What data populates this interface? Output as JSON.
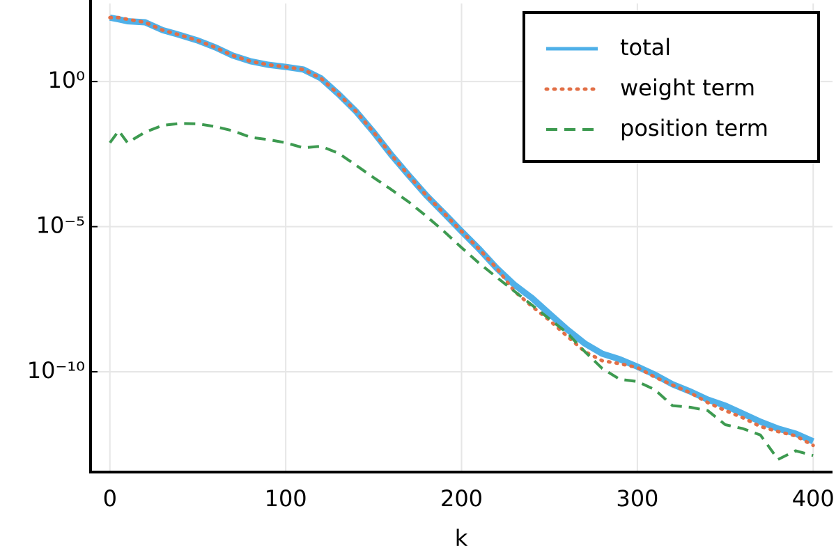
{
  "chart_data": {
    "type": "line",
    "x_label": "k",
    "x": [
      0,
      5,
      10,
      20,
      30,
      40,
      50,
      60,
      70,
      80,
      90,
      100,
      110,
      120,
      130,
      140,
      150,
      160,
      170,
      180,
      190,
      200,
      210,
      220,
      230,
      240,
      250,
      260,
      270,
      280,
      290,
      300,
      310,
      320,
      330,
      340,
      350,
      360,
      370,
      380,
      390,
      400
    ],
    "series": [
      {
        "name": "total",
        "color": "#4fb0e8",
        "line_style": "solid",
        "line_width": 9,
        "values": [
          160,
          140,
          120,
          110,
          59,
          40,
          26,
          15,
          7.8,
          5.0,
          3.8,
          3.2,
          2.6,
          1.3,
          0.37,
          0.093,
          0.018,
          0.003,
          0.00058,
          0.00012,
          2.9e-05,
          6.9e-06,
          1.7e-06,
          3.7e-07,
          1e-07,
          3.5e-08,
          1e-08,
          2.9e-09,
          9.5e-10,
          4.2e-10,
          2.7e-10,
          1.5e-10,
          7.9e-11,
          3.7e-11,
          2.1e-11,
          1.1e-11,
          6.8e-12,
          3.6e-12,
          1.9e-12,
          1.1e-12,
          7.4e-13,
          4e-13
        ]
      },
      {
        "name": "weight term",
        "color": "#e26f46",
        "line_style": "dotted",
        "line_width": 5,
        "values": [
          160,
          160,
          140,
          110,
          59,
          40,
          26,
          15,
          7.8,
          5.0,
          3.8,
          3.2,
          2.6,
          1.3,
          0.37,
          0.093,
          0.018,
          0.003,
          0.00058,
          0.00012,
          2.9e-05,
          6.9e-06,
          1.7e-06,
          3.7e-07,
          6e-08,
          1.8e-08,
          5.9e-09,
          1.7e-09,
          5e-10,
          2.4e-10,
          1.9e-10,
          1.4e-10,
          6.5e-11,
          3.5e-11,
          1.9e-11,
          8.7e-12,
          4.6e-12,
          2.6e-12,
          1.3e-12,
          8.7e-13,
          6.2e-13,
          2.9e-13
        ]
      },
      {
        "name": "position term",
        "color": "#3d9a50",
        "line_style": "dashed",
        "line_width": 4,
        "values": [
          0.0078,
          0.02,
          0.0078,
          0.018,
          0.031,
          0.036,
          0.035,
          0.028,
          0.02,
          0.012,
          0.01,
          0.0078,
          0.0052,
          0.0059,
          0.0034,
          0.0013,
          0.00049,
          0.00019,
          7.1e-05,
          2.3e-05,
          6.9e-06,
          1.9e-06,
          5.5e-07,
          1.8e-07,
          6e-08,
          2e-08,
          6.6e-09,
          2.2e-09,
          5e-10,
          1.3e-10,
          5.5e-11,
          4.6e-11,
          2.4e-11,
          6.8e-12,
          6e-12,
          4.6e-12,
          1.5e-12,
          1.1e-12,
          6.6e-13,
          9.5e-14,
          1.9e-13,
          1.3e-13
        ]
      }
    ],
    "xlim": [
      -11,
      411
    ],
    "xticks": [
      0,
      100,
      200,
      300,
      400
    ],
    "ylim": [
      3.5e-14,
      490
    ],
    "y_scale": "log",
    "yticks": [
      {
        "value": 1,
        "label": "10⁰"
      },
      {
        "value": 1e-05,
        "label": "10⁻⁵"
      },
      {
        "value": 1e-10,
        "label": "10⁻¹⁰"
      }
    ],
    "grid": true,
    "legend": "top right"
  }
}
